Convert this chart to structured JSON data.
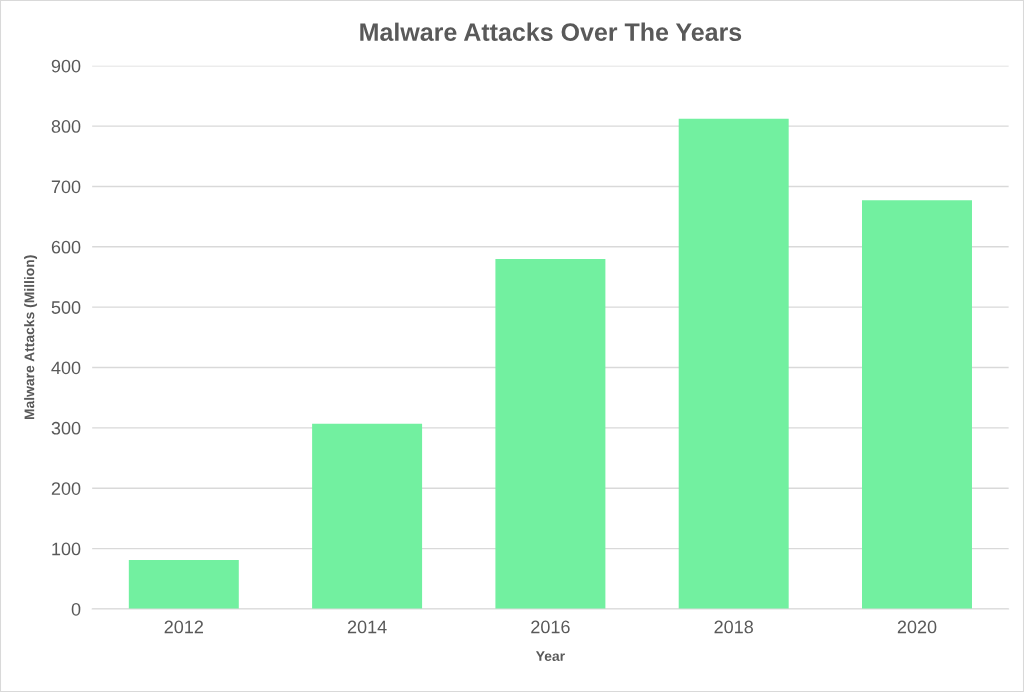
{
  "chart_data": {
    "type": "bar",
    "title": "Malware Attacks Over The Years",
    "xlabel": "Year",
    "ylabel": "Malware Attacks (Million)",
    "categories": [
      "2012",
      "2014",
      "2016",
      "2018",
      "2020"
    ],
    "values": [
      81,
      307,
      580,
      812,
      677
    ],
    "color": "#72f0a0",
    "ylim": [
      0,
      900
    ],
    "yticks": [
      0,
      100,
      200,
      300,
      400,
      500,
      600,
      700,
      800,
      900
    ],
    "grid": "y",
    "legend": false
  }
}
